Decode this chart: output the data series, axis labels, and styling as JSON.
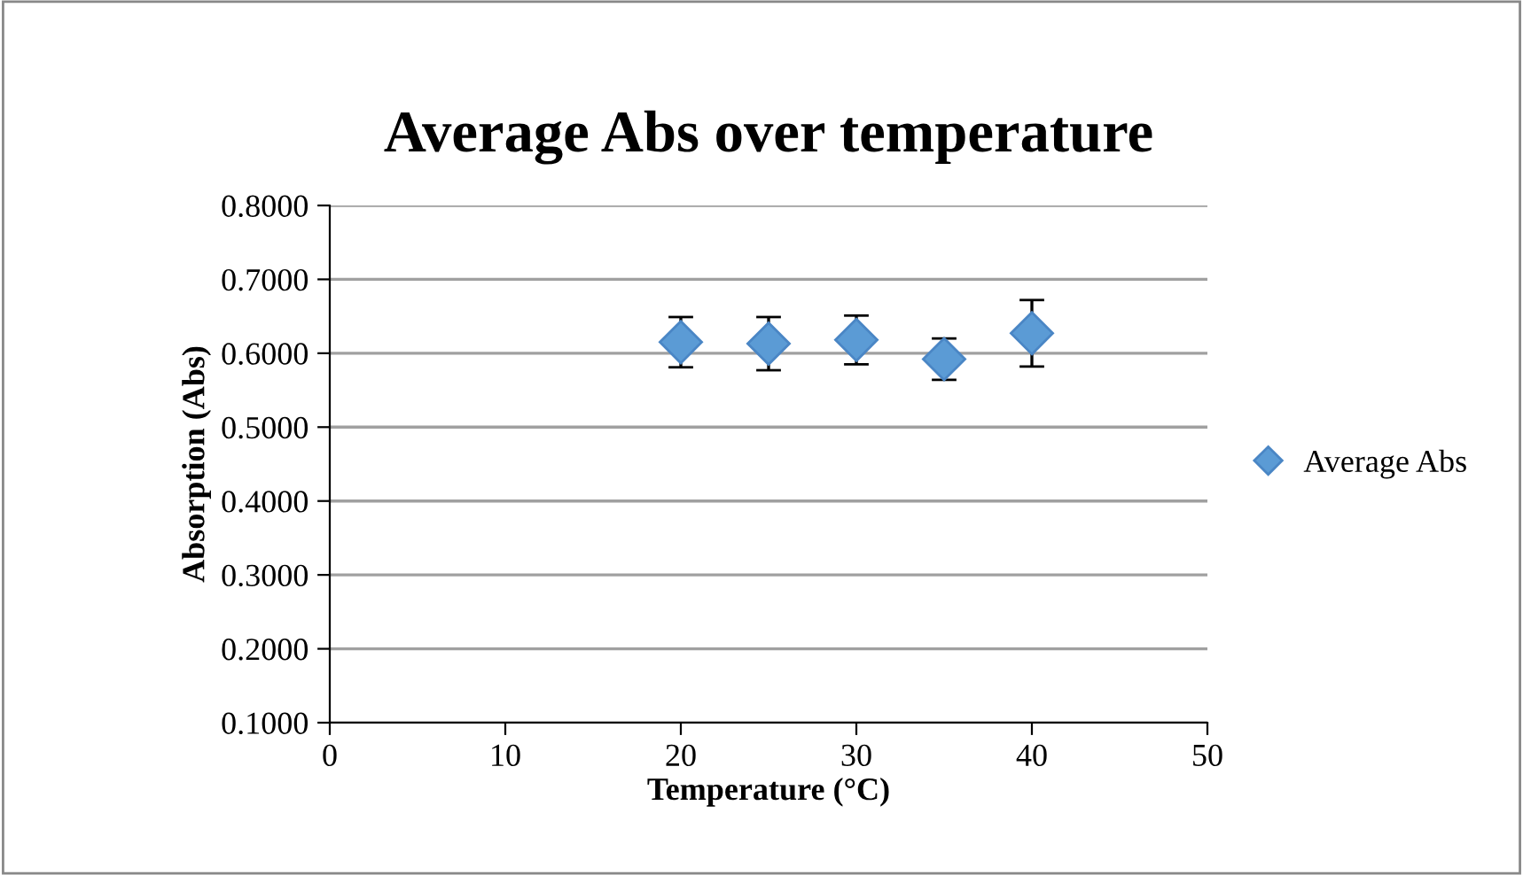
{
  "chart_data": {
    "type": "scatter",
    "title": "Average Abs over temperature",
    "xlabel": "Temperature (°C)",
    "ylabel": "Absorption (Abs)",
    "x": [
      20,
      25,
      30,
      35,
      40
    ],
    "series": [
      {
        "name": "Average Abs",
        "color": "#5b9bd5",
        "values": [
          0.615,
          0.613,
          0.618,
          0.592,
          0.627
        ],
        "errors": [
          0.034,
          0.036,
          0.033,
          0.028,
          0.045
        ]
      }
    ],
    "marker": "diamond",
    "xlim": [
      0,
      50
    ],
    "xticks": [
      0,
      10,
      20,
      30,
      40,
      50
    ],
    "ylim": [
      0.1,
      0.8
    ],
    "yticks": [
      {
        "value": 0.1,
        "label": "0.1000"
      },
      {
        "value": 0.2,
        "label": "0.2000"
      },
      {
        "value": 0.3,
        "label": "0.3000"
      },
      {
        "value": 0.4,
        "label": "0.4000"
      },
      {
        "value": 0.5,
        "label": "0.5000"
      },
      {
        "value": 0.6,
        "label": "0.6000"
      },
      {
        "value": 0.7,
        "label": "0.7000"
      },
      {
        "value": 0.8,
        "label": "0.8000"
      }
    ],
    "grid": "y",
    "legend": "right"
  }
}
